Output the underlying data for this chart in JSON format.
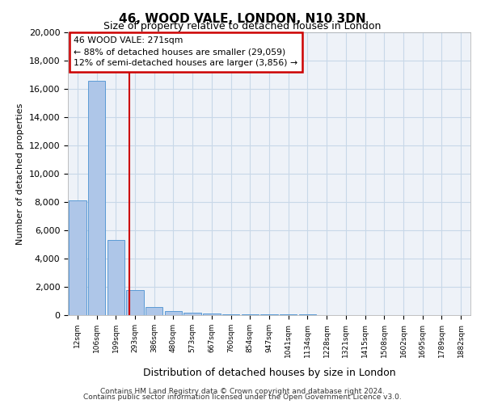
{
  "title1": "46, WOOD VALE, LONDON, N10 3DN",
  "title2": "Size of property relative to detached houses in London",
  "xlabel": "Distribution of detached houses by size in London",
  "ylabel": "Number of detached properties",
  "bin_labels": [
    "12sqm",
    "106sqm",
    "199sqm",
    "293sqm",
    "386sqm",
    "480sqm",
    "573sqm",
    "667sqm",
    "760sqm",
    "854sqm",
    "947sqm",
    "1041sqm",
    "1134sqm",
    "1228sqm",
    "1321sqm",
    "1415sqm",
    "1508sqm",
    "1602sqm",
    "1695sqm",
    "1789sqm",
    "1882sqm"
  ],
  "bar_values": [
    8100,
    16600,
    5300,
    1800,
    600,
    300,
    150,
    100,
    80,
    60,
    50,
    40,
    30,
    20,
    15,
    10,
    8,
    5,
    3,
    2,
    1
  ],
  "bar_color": "#aec6e8",
  "bar_edge_color": "#5b9bd5",
  "vline_x": 2.72,
  "vline_color": "#cc0000",
  "annotation_line1": "46 WOOD VALE: 271sqm",
  "annotation_line2": "← 88% of detached houses are smaller (29,059)",
  "annotation_line3": "12% of semi-detached houses are larger (3,856) →",
  "annotation_box_color": "#cc0000",
  "annotation_box_facecolor": "white",
  "ylim": [
    0,
    20000
  ],
  "yticks": [
    0,
    2000,
    4000,
    6000,
    8000,
    10000,
    12000,
    14000,
    16000,
    18000,
    20000
  ],
  "footer1": "Contains HM Land Registry data © Crown copyright and database right 2024.",
  "footer2": "Contains public sector information licensed under the Open Government Licence v3.0.",
  "background_color": "#eef2f8",
  "grid_color": "#c8d8e8"
}
